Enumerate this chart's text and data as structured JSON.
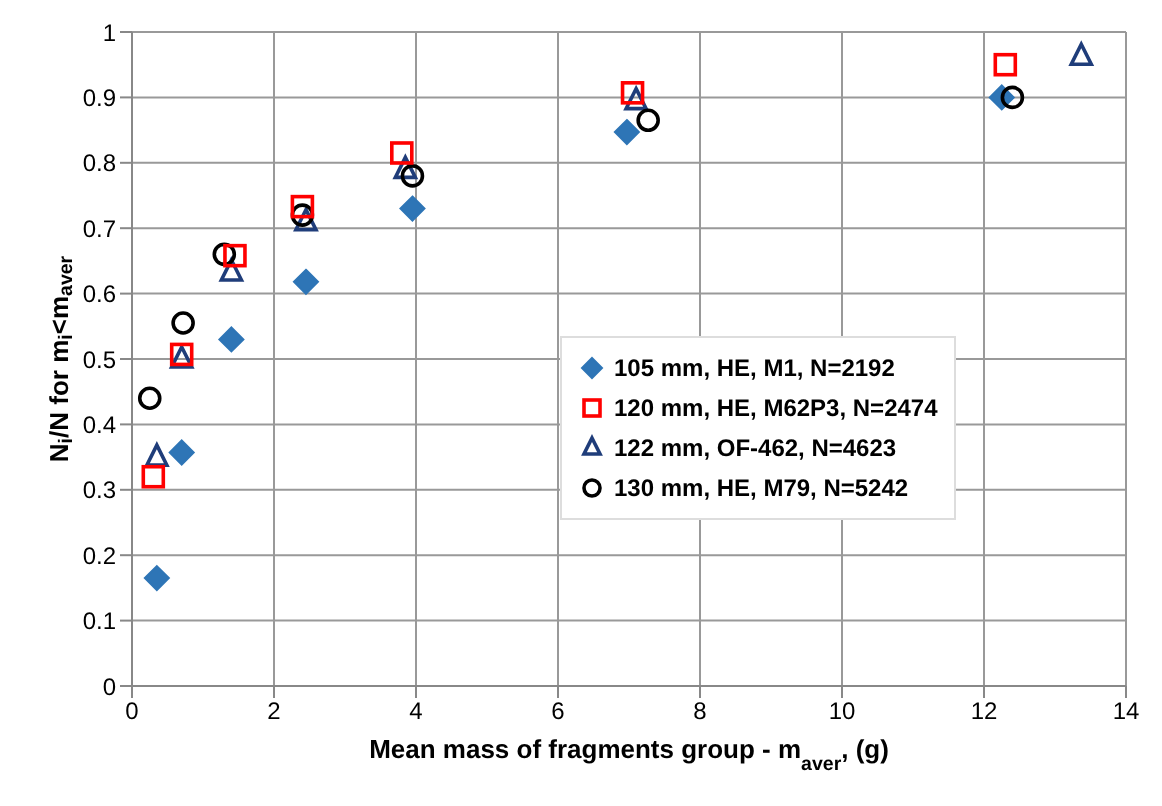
{
  "chart_data": {
    "type": "scatter",
    "xlabel": "Mean mass of fragments group - m$_{aver}$, (g)",
    "ylabel": "N$_{i}$/N for m$_{i}$<m$_{aver}$",
    "xlim": [
      0,
      14
    ],
    "xticks": [
      0,
      2,
      4,
      6,
      8,
      10,
      12,
      14
    ],
    "ylim": [
      0,
      1
    ],
    "yticks": [
      0,
      0.1,
      0.2,
      0.3,
      0.4,
      0.5,
      0.6,
      0.7,
      0.8,
      0.9,
      1
    ],
    "grid": true,
    "legend": "right",
    "series": [
      {
        "name": "105 mm, HE, M1, N=2192",
        "color": "#2e75b6",
        "marker": "diamond",
        "x": [
          0.35,
          0.7,
          1.4,
          2.45,
          3.95,
          6.97,
          12.25
        ],
        "values": [
          0.165,
          0.357,
          0.53,
          0.618,
          0.73,
          0.847,
          0.9
        ]
      },
      {
        "name": "120 mm, HE, M62P3, N=2474",
        "color": "#ff0000",
        "marker": "square",
        "x": [
          0.3,
          0.7,
          1.45,
          2.4,
          3.8,
          7.05,
          12.3
        ],
        "values": [
          0.32,
          0.507,
          0.658,
          0.733,
          0.815,
          0.907,
          0.95
        ]
      },
      {
        "name": "122 mm, OF-462, N=4623",
        "color": "#1f3d7a",
        "marker": "triangle",
        "x": [
          0.35,
          0.7,
          1.4,
          2.45,
          3.85,
          7.1,
          13.37
        ],
        "values": [
          0.35,
          0.5,
          0.633,
          0.71,
          0.79,
          0.895,
          0.963
        ]
      },
      {
        "name": "130 mm, HE, M79, N=5242",
        "color": "#000000",
        "marker": "circle",
        "x": [
          0.25,
          0.72,
          1.3,
          2.4,
          3.95,
          7.27,
          12.4
        ],
        "values": [
          0.44,
          0.555,
          0.66,
          0.72,
          0.78,
          0.865,
          0.9
        ]
      }
    ]
  }
}
